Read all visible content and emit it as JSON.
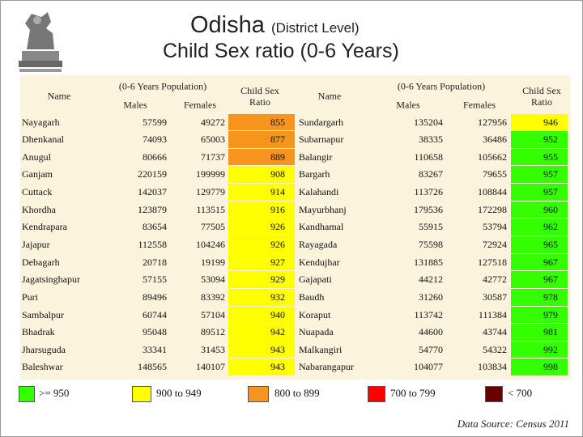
{
  "header": {
    "title": "Odisha",
    "title_suffix": "(District Level)",
    "subtitle": "Child Sex ratio (0-6 Years)"
  },
  "table": {
    "columns": {
      "name": "Name",
      "population": "(0-6 Years Population)",
      "males": "Males",
      "females": "Females",
      "ratio": "Child Sex Ratio"
    },
    "left_rows": [
      {
        "name": "Nayagarh",
        "males": 57599,
        "females": 49272,
        "ratio": 855,
        "color": "#f7941d"
      },
      {
        "name": "Dhenkanal",
        "males": 74093,
        "females": 65003,
        "ratio": 877,
        "color": "#f7941d"
      },
      {
        "name": "Anugul",
        "males": 80666,
        "females": 71737,
        "ratio": 889,
        "color": "#f7941d"
      },
      {
        "name": "Ganjam",
        "males": 220159,
        "females": 199999,
        "ratio": 908,
        "color": "#ffff00"
      },
      {
        "name": "Cuttack",
        "males": 142037,
        "females": 129779,
        "ratio": 914,
        "color": "#ffff00"
      },
      {
        "name": "Khordha",
        "males": 123879,
        "females": 113515,
        "ratio": 916,
        "color": "#ffff00"
      },
      {
        "name": "Kendrapara",
        "males": 83654,
        "females": 77505,
        "ratio": 926,
        "color": "#ffff00"
      },
      {
        "name": "Jajapur",
        "males": 112558,
        "females": 104246,
        "ratio": 926,
        "color": "#ffff00"
      },
      {
        "name": "Debagarh",
        "males": 20718,
        "females": 19199,
        "ratio": 927,
        "color": "#ffff00"
      },
      {
        "name": "Jagatsinghapur",
        "males": 57155,
        "females": 53094,
        "ratio": 929,
        "color": "#ffff00"
      },
      {
        "name": "Puri",
        "males": 89496,
        "females": 83392,
        "ratio": 932,
        "color": "#ffff00"
      },
      {
        "name": "Sambalpur",
        "males": 60744,
        "females": 57104,
        "ratio": 940,
        "color": "#ffff00"
      },
      {
        "name": "Bhadrak",
        "males": 95048,
        "females": 89512,
        "ratio": 942,
        "color": "#ffff00"
      },
      {
        "name": "Jharsuguda",
        "males": 33341,
        "females": 31453,
        "ratio": 943,
        "color": "#ffff00"
      },
      {
        "name": "Baleshwar",
        "males": 148565,
        "females": 140107,
        "ratio": 943,
        "color": "#ffff00"
      }
    ],
    "right_rows": [
      {
        "name": "Sundargarh",
        "males": 135204,
        "females": 127956,
        "ratio": 946,
        "color": "#ffff00"
      },
      {
        "name": "Subarnapur",
        "males": 38335,
        "females": 36486,
        "ratio": 952,
        "color": "#33ff00"
      },
      {
        "name": "Balangir",
        "males": 110658,
        "females": 105662,
        "ratio": 955,
        "color": "#33ff00"
      },
      {
        "name": "Bargarh",
        "males": 83267,
        "females": 79655,
        "ratio": 957,
        "color": "#33ff00"
      },
      {
        "name": "Kalahandi",
        "males": 113726,
        "females": 108844,
        "ratio": 957,
        "color": "#33ff00"
      },
      {
        "name": "Mayurbhanj",
        "males": 179536,
        "females": 172298,
        "ratio": 960,
        "color": "#33ff00"
      },
      {
        "name": "Kandhamal",
        "males": 55915,
        "females": 53794,
        "ratio": 962,
        "color": "#33ff00"
      },
      {
        "name": "Rayagada",
        "males": 75598,
        "females": 72924,
        "ratio": 965,
        "color": "#33ff00"
      },
      {
        "name": "Kendujhar",
        "males": 131885,
        "females": 127518,
        "ratio": 967,
        "color": "#33ff00"
      },
      {
        "name": "Gajapati",
        "males": 44212,
        "females": 42772,
        "ratio": 967,
        "color": "#33ff00"
      },
      {
        "name": "Baudh",
        "males": 31260,
        "females": 30587,
        "ratio": 978,
        "color": "#33ff00"
      },
      {
        "name": "Koraput",
        "males": 113742,
        "females": 111384,
        "ratio": 979,
        "color": "#33ff00"
      },
      {
        "name": "Nuapada",
        "males": 44600,
        "females": 43744,
        "ratio": 981,
        "color": "#33ff00"
      },
      {
        "name": "Malkangiri",
        "males": 54770,
        "females": 54322,
        "ratio": 992,
        "color": "#33ff00"
      },
      {
        "name": "Nabarangapur",
        "males": 104077,
        "females": 103834,
        "ratio": 998,
        "color": "#33ff00"
      }
    ]
  },
  "legend": [
    {
      "label": ">= 950",
      "color": "#33ff00"
    },
    {
      "label": "900 to 949",
      "color": "#ffff00"
    },
    {
      "label": "800 to 899",
      "color": "#f7941d"
    },
    {
      "label": "700 to 799",
      "color": "#ff0000"
    },
    {
      "label": "< 700",
      "color": "#6b0000"
    }
  ],
  "source": "Data Source: Census 2011"
}
